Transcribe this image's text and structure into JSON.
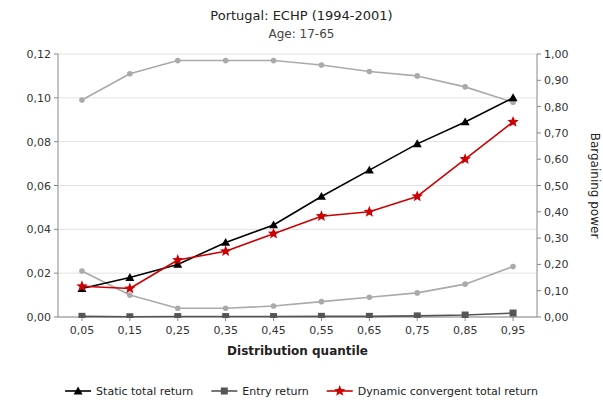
{
  "chart_data": {
    "type": "line",
    "title": "Portugal: ECHP (1994-2001)",
    "subtitle": "Age: 17-65",
    "xlabel": "Distribution quantile",
    "y2label": "Bargaining power",
    "x": [
      0.05,
      0.15,
      0.25,
      0.35,
      0.45,
      0.55,
      0.65,
      0.75,
      0.85,
      0.95
    ],
    "xlim": [
      0.0,
      1.0
    ],
    "xticks": [
      {
        "value": 0.05,
        "label": "0,05"
      },
      {
        "value": 0.15,
        "label": "0,15"
      },
      {
        "value": 0.25,
        "label": "0,25"
      },
      {
        "value": 0.35,
        "label": "0,35"
      },
      {
        "value": 0.45,
        "label": "0,45"
      },
      {
        "value": 0.55,
        "label": "0,55"
      },
      {
        "value": 0.65,
        "label": "0,65"
      },
      {
        "value": 0.75,
        "label": "0,75"
      },
      {
        "value": 0.85,
        "label": "0,85"
      },
      {
        "value": 0.95,
        "label": "0,95"
      }
    ],
    "ylim": [
      0.0,
      0.12
    ],
    "yticks": [
      {
        "value": 0.0,
        "label": "0,00"
      },
      {
        "value": 0.02,
        "label": "0,02"
      },
      {
        "value": 0.04,
        "label": "0,04"
      },
      {
        "value": 0.06,
        "label": "0,06"
      },
      {
        "value": 0.08,
        "label": "0,08"
      },
      {
        "value": 0.1,
        "label": "0,10"
      },
      {
        "value": 0.12,
        "label": "0,12"
      }
    ],
    "y2lim": [
      0.0,
      1.0
    ],
    "y2ticks": [
      {
        "value": 0.0,
        "label": "0,00"
      },
      {
        "value": 0.1,
        "label": "0,10"
      },
      {
        "value": 0.2,
        "label": "0,20"
      },
      {
        "value": 0.3,
        "label": "0,30"
      },
      {
        "value": 0.4,
        "label": "0,40"
      },
      {
        "value": 0.5,
        "label": "0,50"
      },
      {
        "value": 0.6,
        "label": "0,60"
      },
      {
        "value": 0.7,
        "label": "0,70"
      },
      {
        "value": 0.8,
        "label": "0,80"
      },
      {
        "value": 0.9,
        "label": "0,90"
      },
      {
        "value": 1.0,
        "label": "1,00"
      }
    ],
    "grid": true,
    "legend": "bottom",
    "series": [
      {
        "color": "#aaaaaa",
        "marker": "circle",
        "values": [
          0.099,
          0.111,
          0.117,
          0.117,
          0.117,
          0.115,
          0.112,
          0.11,
          0.105,
          0.098
        ]
      },
      {
        "color": "#aaaaaa",
        "marker": "circle",
        "values": [
          0.021,
          0.01,
          0.004,
          0.004,
          0.005,
          0.007,
          0.009,
          0.011,
          0.015,
          0.023
        ]
      },
      {
        "name": "Static total return",
        "color": "#000000",
        "marker": "triangle",
        "values": [
          0.013,
          0.018,
          0.024,
          0.034,
          0.042,
          0.055,
          0.067,
          0.079,
          0.089,
          0.1
        ]
      },
      {
        "name": "Entry return",
        "color": "#555555",
        "marker": "square",
        "values": [
          0.0003,
          0.0001,
          0.0002,
          0.0002,
          0.0002,
          0.0003,
          0.0003,
          0.0005,
          0.0009,
          0.0018
        ]
      },
      {
        "name": "Dynamic convergent total return",
        "color": "#cc0000",
        "marker": "star",
        "values": [
          0.014,
          0.013,
          0.026,
          0.03,
          0.038,
          0.046,
          0.048,
          0.055,
          0.072,
          0.089
        ]
      }
    ]
  }
}
